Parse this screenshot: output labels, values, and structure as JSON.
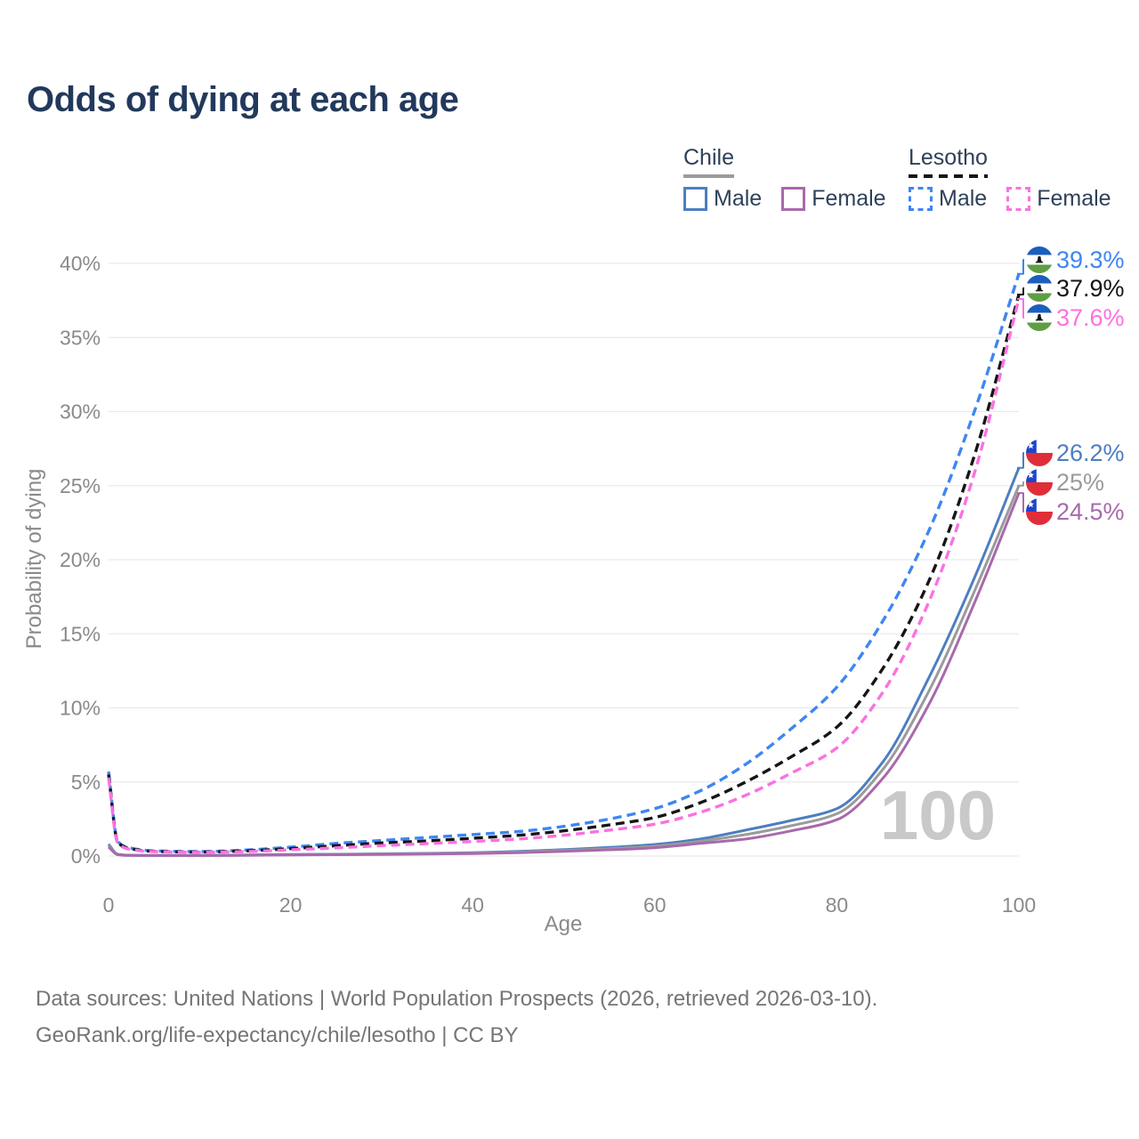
{
  "page": {
    "title": "Odds of dying at each age"
  },
  "legend": {
    "groups": [
      {
        "label": "Chile",
        "line_color": "#9b9b9b",
        "line_dash": false,
        "items": [
          {
            "label": "Male",
            "color": "#4d7ec0",
            "dash": false
          },
          {
            "label": "Female",
            "color": "#a869ac",
            "dash": false
          }
        ]
      },
      {
        "label": "Lesotho",
        "line_color": "#161616",
        "line_dash": true,
        "items": [
          {
            "label": "Male",
            "color": "#3e86f2",
            "dash": true
          },
          {
            "label": "Female",
            "color": "#fb71e1",
            "dash": true
          }
        ]
      }
    ]
  },
  "chart_data": {
    "type": "line",
    "title": "Odds of dying at each age",
    "xlabel": "Age",
    "ylabel": "Probability of dying",
    "xlim": [
      0,
      100
    ],
    "ylim": [
      0,
      40
    ],
    "x_ticks": [
      0,
      20,
      40,
      60,
      80,
      100
    ],
    "y_ticks": [
      0,
      5,
      10,
      15,
      20,
      25,
      30,
      35,
      40
    ],
    "y_tick_suffix": "%",
    "grid": "horizontal",
    "watermark": "100",
    "x": [
      0,
      1,
      2,
      5,
      10,
      15,
      20,
      25,
      30,
      35,
      40,
      45,
      50,
      55,
      60,
      65,
      70,
      75,
      80,
      85,
      90,
      95,
      100
    ],
    "series": [
      {
        "name": "Lesotho Male",
        "country": "Lesotho",
        "sex": "Male",
        "color": "#3e86f2",
        "dash": true,
        "flag": "lesotho",
        "end_label": "39.3%",
        "values": [
          5.7,
          1.0,
          0.6,
          0.35,
          0.3,
          0.4,
          0.6,
          0.85,
          1.05,
          1.25,
          1.45,
          1.65,
          2.0,
          2.5,
          3.2,
          4.4,
          6.2,
          8.6,
          11.4,
          15.8,
          21.8,
          29.8,
          39.3
        ]
      },
      {
        "name": "Lesotho Both sexes",
        "country": "Lesotho",
        "sex": "Both",
        "color": "#161616",
        "dash": true,
        "flag": "lesotho",
        "end_label": "37.9%",
        "values": [
          5.5,
          0.95,
          0.55,
          0.32,
          0.27,
          0.35,
          0.5,
          0.7,
          0.88,
          1.02,
          1.2,
          1.4,
          1.7,
          2.1,
          2.6,
          3.6,
          5.0,
          6.7,
          8.7,
          12.6,
          18.4,
          26.8,
          37.9
        ]
      },
      {
        "name": "Lesotho Female",
        "country": "Lesotho",
        "sex": "Female",
        "color": "#fb71e1",
        "dash": true,
        "flag": "lesotho",
        "end_label": "37.6%",
        "values": [
          5.3,
          0.9,
          0.5,
          0.3,
          0.25,
          0.3,
          0.42,
          0.55,
          0.7,
          0.84,
          0.98,
          1.15,
          1.4,
          1.75,
          2.15,
          2.95,
          4.1,
          5.6,
          7.3,
          11.0,
          17.0,
          25.6,
          37.6
        ]
      },
      {
        "name": "Chile Male",
        "country": "Chile",
        "sex": "Male",
        "color": "#4d7ec0",
        "dash": false,
        "flag": "chile",
        "end_label": "26.2%",
        "values": [
          0.8,
          0.12,
          0.06,
          0.04,
          0.04,
          0.07,
          0.1,
          0.12,
          0.15,
          0.18,
          0.23,
          0.31,
          0.43,
          0.58,
          0.78,
          1.15,
          1.75,
          2.4,
          3.2,
          6.3,
          11.9,
          18.6,
          26.2
        ]
      },
      {
        "name": "Chile Both sexes",
        "country": "Chile",
        "sex": "Both",
        "color": "#9b9b9b",
        "dash": false,
        "flag": "chile",
        "end_label": "25%",
        "values": [
          0.7,
          0.1,
          0.05,
          0.035,
          0.035,
          0.06,
          0.08,
          0.1,
          0.13,
          0.16,
          0.2,
          0.27,
          0.38,
          0.5,
          0.66,
          1.0,
          1.45,
          2.05,
          2.85,
          5.8,
          11.0,
          17.7,
          25.0
        ]
      },
      {
        "name": "Chile Female",
        "country": "Chile",
        "sex": "Female",
        "color": "#a869ac",
        "dash": false,
        "flag": "chile",
        "end_label": "24.5%",
        "values": [
          0.6,
          0.09,
          0.045,
          0.03,
          0.03,
          0.05,
          0.07,
          0.09,
          0.11,
          0.13,
          0.17,
          0.23,
          0.32,
          0.42,
          0.56,
          0.85,
          1.15,
          1.7,
          2.45,
          5.2,
          10.1,
          16.9,
          24.5
        ]
      }
    ]
  },
  "footer": {
    "line1": "Data sources: United Nations | World Population Prospects (2026, retrieved 2026-03-10).",
    "line2": "GeoRank.org/life-expectancy/chile/lesotho | CC BY"
  }
}
